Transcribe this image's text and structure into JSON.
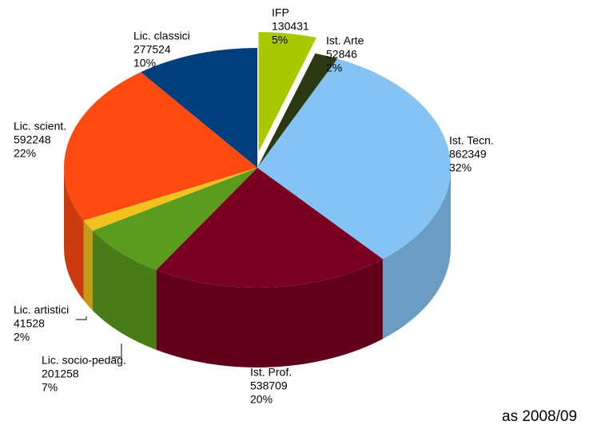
{
  "chart_data": {
    "type": "pie3d",
    "categories": [
      "IFP",
      "Ist. Arte",
      "Ist. Tecn.",
      "Ist. Prof.",
      "Lic. socio-pedag.",
      "Lic. artistici",
      "Lic. scient.",
      "Lic. classici"
    ],
    "values": [
      130431,
      52846,
      862349,
      538709,
      201258,
      41528,
      592248,
      277524
    ],
    "percent_labels": [
      "5%",
      "2%",
      "32%",
      "20%",
      "7%",
      "2%",
      "22%",
      "10%"
    ],
    "colors": [
      "#a8c800",
      "#2b3a12",
      "#86c3f5",
      "#7a0022",
      "#5b9b1e",
      "#f2c21e",
      "#ff4a12",
      "#003e7c"
    ],
    "exploded": [
      "IFP"
    ],
    "note": "as 2008/09"
  }
}
